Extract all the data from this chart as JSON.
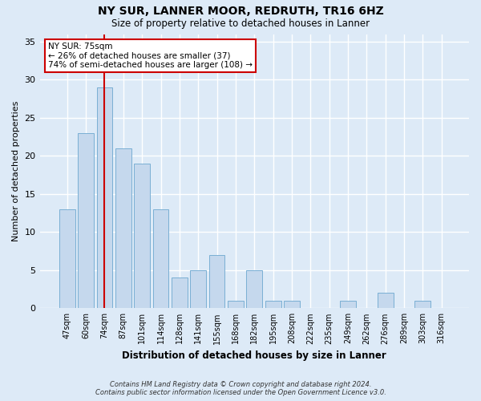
{
  "title_line1": "NY SUR, LANNER MOOR, REDRUTH, TR16 6HZ",
  "title_line2": "Size of property relative to detached houses in Lanner",
  "xlabel": "Distribution of detached houses by size in Lanner",
  "ylabel": "Number of detached properties",
  "categories": [
    "47sqm",
    "60sqm",
    "74sqm",
    "87sqm",
    "101sqm",
    "114sqm",
    "128sqm",
    "141sqm",
    "155sqm",
    "168sqm",
    "182sqm",
    "195sqm",
    "208sqm",
    "222sqm",
    "235sqm",
    "249sqm",
    "262sqm",
    "276sqm",
    "289sqm",
    "303sqm",
    "316sqm"
  ],
  "values": [
    13,
    23,
    29,
    21,
    19,
    13,
    4,
    5,
    7,
    1,
    5,
    1,
    1,
    0,
    0,
    1,
    0,
    2,
    0,
    1,
    0
  ],
  "bar_color": "#c5d8ed",
  "bar_edge_color": "#7aafd4",
  "background_color": "#ddeaf7",
  "grid_color": "#ffffff",
  "vline_x": 2,
  "vline_color": "#cc0000",
  "annotation_text": "NY SUR: 75sqm\n← 26% of detached houses are smaller (37)\n74% of semi-detached houses are larger (108) →",
  "annotation_box_color": "#ffffff",
  "annotation_box_edge": "#cc0000",
  "ylim": [
    0,
    36
  ],
  "yticks": [
    0,
    5,
    10,
    15,
    20,
    25,
    30,
    35
  ],
  "footer_line1": "Contains HM Land Registry data © Crown copyright and database right 2024.",
  "footer_line2": "Contains public sector information licensed under the Open Government Licence v3.0."
}
